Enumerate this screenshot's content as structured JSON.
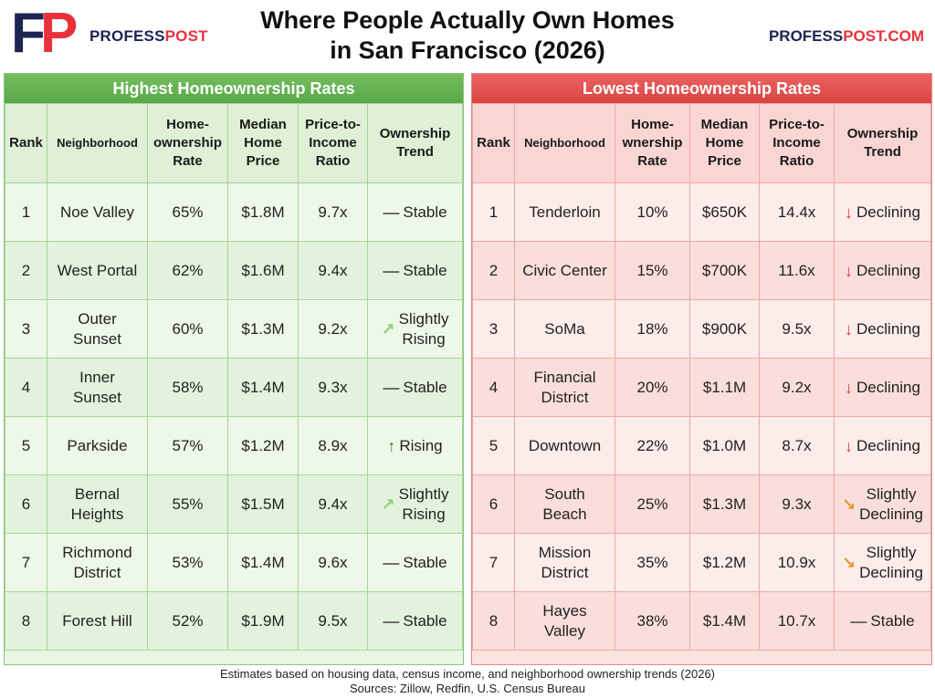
{
  "header": {
    "brand_prefix": "PROFESS",
    "brand_suffix": "POST",
    "url_prefix": "PROFESS",
    "url_suffix": "POST.COM",
    "title_line1": "Where People Actually Own Homes",
    "title_line2": "in San Francisco (2026)",
    "logo_letter_f": "F",
    "logo_letter_p": "P"
  },
  "colors": {
    "navy": "#1c2452",
    "brand_red": "#e9313c",
    "high_header": "#5fae4c",
    "low_header": "#de4e4c",
    "trend_stable": "#666666",
    "trend_rising": "#2f8a2a",
    "trend_slightly_rising": "#8fcf7a",
    "trend_declining": "#d83a32",
    "trend_slightly_declining": "#e8952a"
  },
  "columns": {
    "rank": "Rank",
    "neighborhood": "Neighborhood",
    "rate_high": [
      "Home-",
      "ownership",
      "Rate"
    ],
    "rate_low": [
      "Home-",
      "wnership",
      "Rate"
    ],
    "price": [
      "Median",
      "Home",
      "Price"
    ],
    "ratio": [
      "Price-to-",
      "Income",
      "Ratio"
    ],
    "trend": [
      "Ownership",
      "Trend"
    ]
  },
  "highest": {
    "heading": "Highest Homeownership Rates",
    "rows": [
      {
        "rank": "1",
        "name": [
          "Noe Valley"
        ],
        "rate": "65%",
        "price": "$1.8M",
        "ratio": "9.7x",
        "trend": [
          "Stable"
        ],
        "trend_icon": "—",
        "trend_kind": "stable"
      },
      {
        "rank": "2",
        "name": [
          "West Portal"
        ],
        "rate": "62%",
        "price": "$1.6M",
        "ratio": "9.4x",
        "trend": [
          "Stable"
        ],
        "trend_icon": "—",
        "trend_kind": "stable"
      },
      {
        "rank": "3",
        "name": [
          "Outer",
          "Sunset"
        ],
        "rate": "60%",
        "price": "$1.3M",
        "ratio": "9.2x",
        "trend": [
          "Slightly",
          "Rising"
        ],
        "trend_icon": "↗",
        "trend_kind": "slightly_rising"
      },
      {
        "rank": "4",
        "name": [
          "Inner",
          "Sunset"
        ],
        "rate": "58%",
        "price": "$1.4M",
        "ratio": "9.3x",
        "trend": [
          "Stable"
        ],
        "trend_icon": "—",
        "trend_kind": "stable"
      },
      {
        "rank": "5",
        "name": [
          "Parkside"
        ],
        "rate": "57%",
        "price": "$1.2M",
        "ratio": "8.9x",
        "trend": [
          "Rising"
        ],
        "trend_icon": "↑",
        "trend_kind": "rising"
      },
      {
        "rank": "6",
        "name": [
          "Bernal",
          "Heights"
        ],
        "rate": "55%",
        "price": "$1.5M",
        "ratio": "9.4x",
        "trend": [
          "Slightly",
          "Rising"
        ],
        "trend_icon": "↗",
        "trend_kind": "slightly_rising"
      },
      {
        "rank": "7",
        "name": [
          "Richmond",
          "District"
        ],
        "rate": "53%",
        "price": "$1.4M",
        "ratio": "9.6x",
        "trend": [
          "Stable"
        ],
        "trend_icon": "—",
        "trend_kind": "stable"
      },
      {
        "rank": "8",
        "name": [
          "Forest Hill"
        ],
        "rate": "52%",
        "price": "$1.9M",
        "ratio": "9.5x",
        "trend": [
          "Stable"
        ],
        "trend_icon": "—",
        "trend_kind": "stable"
      }
    ]
  },
  "lowest": {
    "heading": "Lowest Homeownership Rates",
    "rows": [
      {
        "rank": "1",
        "name": [
          "Tenderloin"
        ],
        "rate": "10%",
        "price": "$650K",
        "ratio": "14.4x",
        "trend": [
          "Declining"
        ],
        "trend_icon": "↓",
        "trend_kind": "declining"
      },
      {
        "rank": "2",
        "name": [
          "Civic Center"
        ],
        "rate": "15%",
        "price": "$700K",
        "ratio": "11.6x",
        "trend": [
          "Declining"
        ],
        "trend_icon": "↓",
        "trend_kind": "declining"
      },
      {
        "rank": "3",
        "name": [
          "SoMa"
        ],
        "rate": "18%",
        "price": "$900K",
        "ratio": "9.5x",
        "trend": [
          "Declining"
        ],
        "trend_icon": "↓",
        "trend_kind": "declining"
      },
      {
        "rank": "4",
        "name": [
          "Financial",
          "District"
        ],
        "rate": "20%",
        "price": "$1.1M",
        "ratio": "9.2x",
        "trend": [
          "Declining"
        ],
        "trend_icon": "↓",
        "trend_kind": "declining"
      },
      {
        "rank": "5",
        "name": [
          "Downtown"
        ],
        "rate": "22%",
        "price": "$1.0M",
        "ratio": "8.7x",
        "trend": [
          "Declining"
        ],
        "trend_icon": "↓",
        "trend_kind": "declining"
      },
      {
        "rank": "6",
        "name": [
          "South",
          "Beach"
        ],
        "rate": "25%",
        "price": "$1.3M",
        "ratio": "9.3x",
        "trend": [
          "Slightly",
          "Declining"
        ],
        "trend_icon": "↘",
        "trend_kind": "slightly_declining"
      },
      {
        "rank": "7",
        "name": [
          "Mission",
          "District"
        ],
        "rate": "35%",
        "price": "$1.2M",
        "ratio": "10.9x",
        "trend": [
          "Slightly",
          "Declining"
        ],
        "trend_icon": "↘",
        "trend_kind": "slightly_declining"
      },
      {
        "rank": "8",
        "name": [
          "Hayes",
          "Valley"
        ],
        "rate": "38%",
        "price": "$1.4M",
        "ratio": "10.7x",
        "trend": [
          "Stable"
        ],
        "trend_icon": "—",
        "trend_kind": "stable"
      }
    ]
  },
  "footer": {
    "note": "Estimates based on housing data, census income, and neighborhood ownership trends (2026)",
    "sources": "Sources: Zillow, Redfin, U.S. Census Bureau"
  }
}
